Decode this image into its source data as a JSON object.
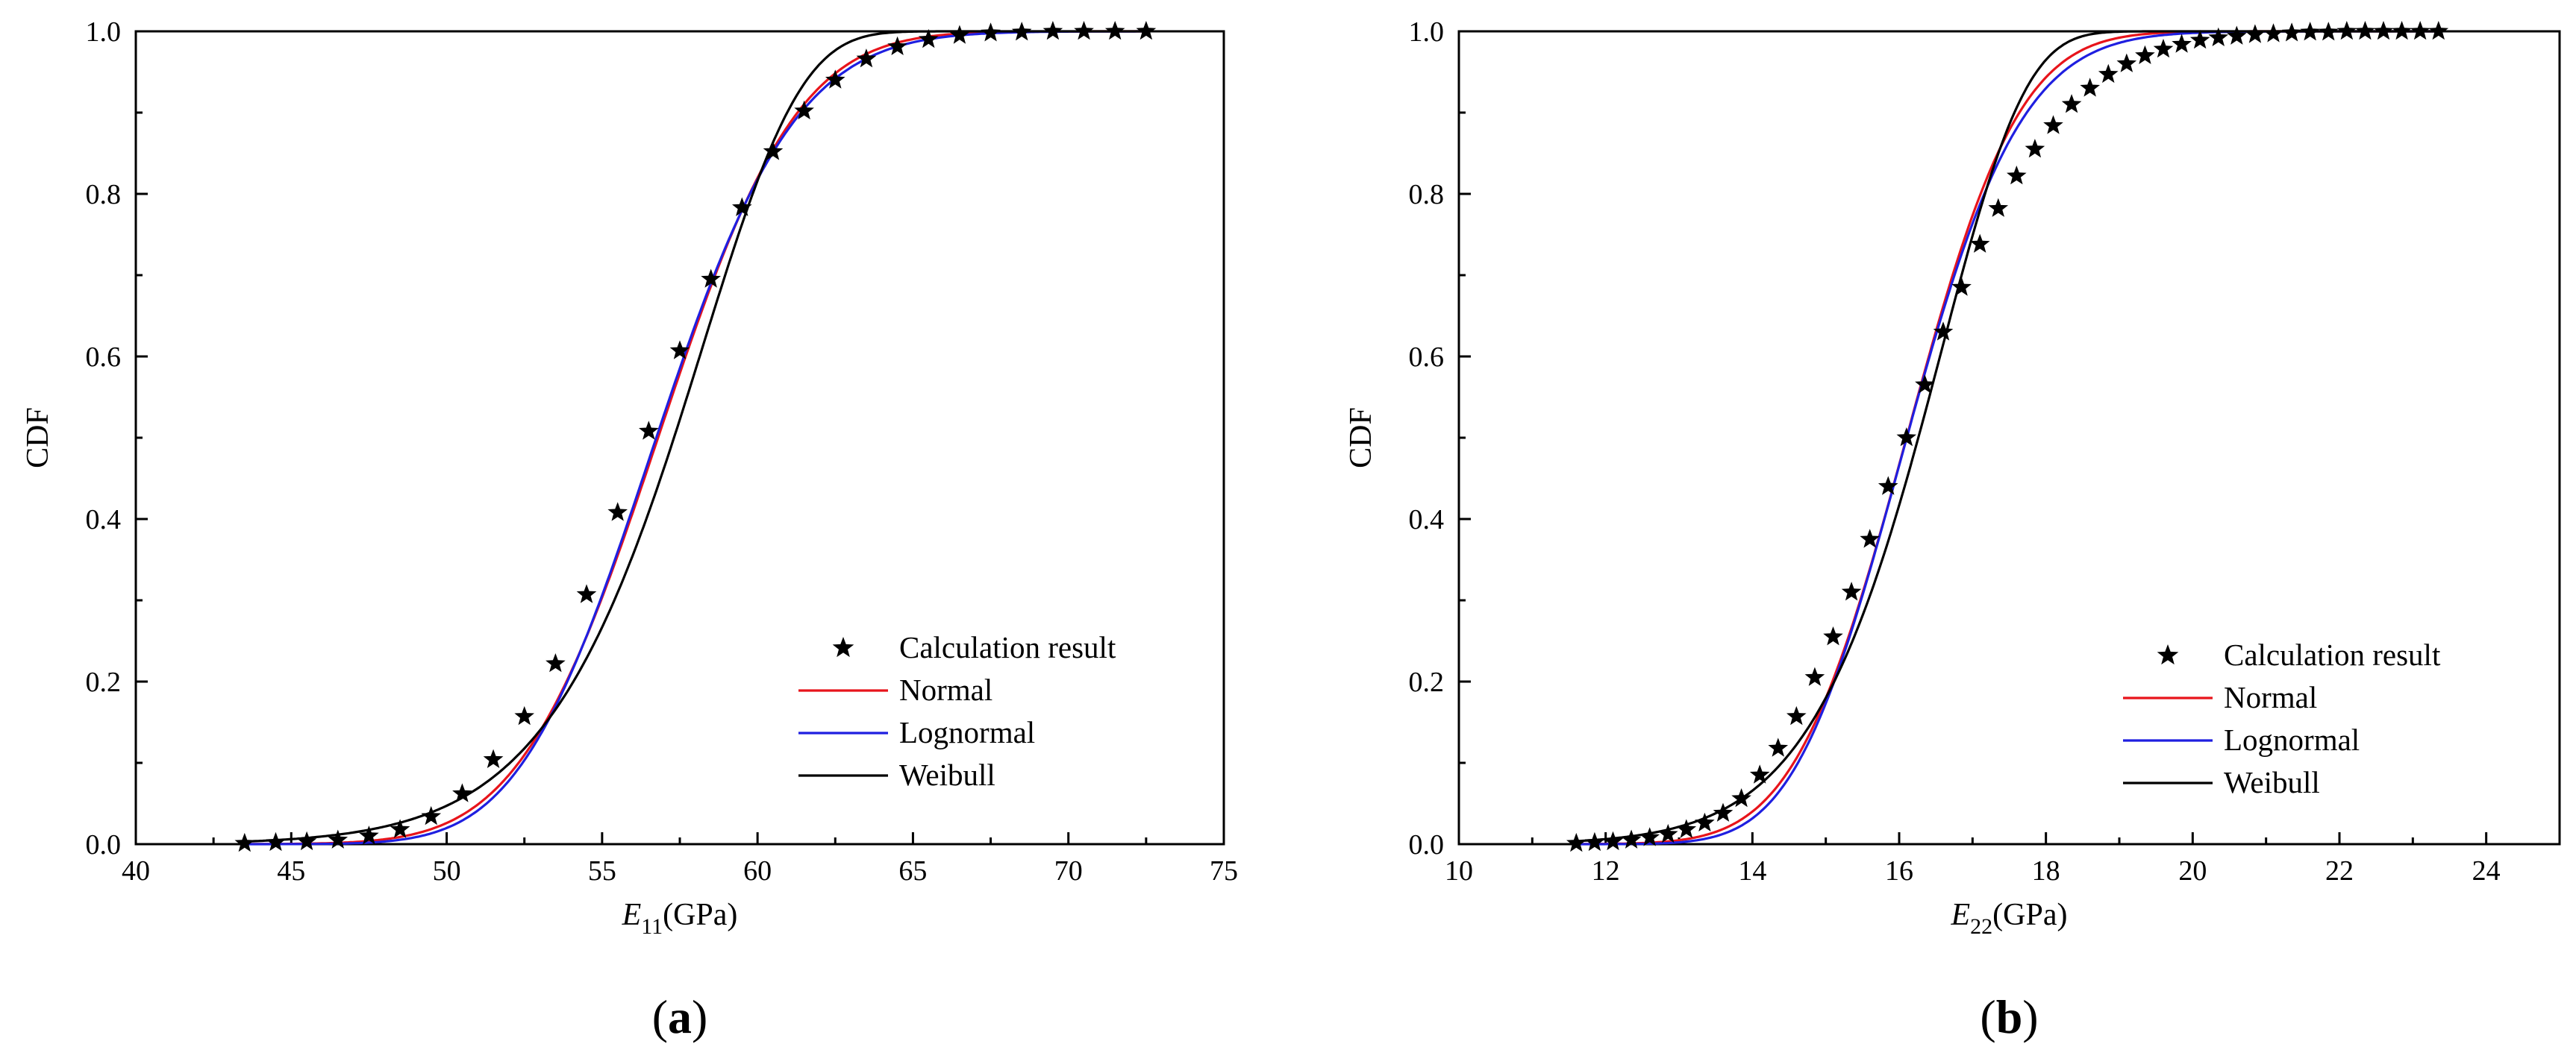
{
  "chart_data": [
    {
      "type": "line",
      "panel_label": "(a)",
      "panel_letter": "a",
      "xlabel_main": "E",
      "xlabel_sub": "11",
      "xlabel_unit": "(GPa)",
      "ylabel": "CDF",
      "xlim": [
        40,
        75
      ],
      "ylim": [
        0,
        1
      ],
      "x_ticks": [
        40,
        45,
        50,
        55,
        60,
        65,
        70,
        75
      ],
      "y_ticks": [
        0.0,
        0.2,
        0.4,
        0.6,
        0.8,
        1.0
      ],
      "grid": false,
      "legend_position": "bottom-right",
      "distributions": {
        "normal": {
          "mean": 56.8,
          "std": 3.5
        },
        "lognormal": {
          "mean": 56.85,
          "std": 3.5
        },
        "weibull": {
          "shape": 19.5,
          "scale": 58.4
        }
      },
      "series": [
        {
          "name": "Calculation result",
          "marker": "star",
          "color": "#000000",
          "x": [
            43.5,
            44.5,
            45.5,
            46.5,
            47.5,
            48.5,
            49.5,
            50.5,
            51.5,
            52.5,
            53.5,
            54.5,
            55.5,
            56.5,
            57.5,
            58.5,
            59.5,
            60.5,
            61.5,
            62.5,
            63.5,
            64.5,
            65.5,
            66.5,
            67.5,
            68.5,
            69.5,
            70.5,
            71.5,
            72.5
          ],
          "y": [
            0.001,
            0.002,
            0.003,
            0.005,
            0.01,
            0.018,
            0.034,
            0.062,
            0.104,
            0.157,
            0.222,
            0.307,
            0.408,
            0.508,
            0.607,
            0.695,
            0.783,
            0.852,
            0.902,
            0.94,
            0.966,
            0.981,
            0.99,
            0.995,
            0.998,
            0.999,
            1.0,
            1.0,
            1.0,
            1.0
          ]
        },
        {
          "name": "Normal",
          "color": "#e8141b"
        },
        {
          "name": "Lognormal",
          "color": "#1f1fe0"
        },
        {
          "name": "Weibull",
          "color": "#000000"
        }
      ]
    },
    {
      "type": "line",
      "panel_label": "(b)",
      "panel_letter": "b",
      "xlabel_main": "E",
      "xlabel_sub": "22",
      "xlabel_unit": "(GPa)",
      "ylabel": "CDF",
      "xlim": [
        10,
        25
      ],
      "ylim": [
        0,
        1
      ],
      "x_ticks": [
        10,
        12,
        14,
        16,
        18,
        20,
        22,
        24
      ],
      "y_ticks": [
        0.0,
        0.2,
        0.4,
        0.6,
        0.8,
        1.0
      ],
      "grid": false,
      "legend_position": "bottom-right",
      "distributions": {
        "normal": {
          "mean": 16.1,
          "std": 1.2
        },
        "lognormal": {
          "mean": 16.15,
          "std": 1.22
        },
        "weibull": {
          "shape": 15.5,
          "scale": 16.65
        }
      },
      "series": [
        {
          "name": "Calculation result",
          "marker": "star",
          "color": "#000000",
          "x": [
            11.6,
            11.85,
            12.1,
            12.35,
            12.6,
            12.85,
            13.1,
            13.35,
            13.6,
            13.85,
            14.1,
            14.35,
            14.6,
            14.85,
            15.1,
            15.35,
            15.6,
            15.85,
            16.1,
            16.35,
            16.6,
            16.85,
            17.1,
            17.35,
            17.6,
            17.85,
            18.1,
            18.35,
            18.6,
            18.85,
            19.1,
            19.35,
            19.6,
            19.85,
            20.1,
            20.35,
            20.6,
            20.85,
            21.1,
            21.35,
            21.6,
            21.85,
            22.1,
            22.35,
            22.6,
            22.85,
            23.1,
            23.35
          ],
          "y": [
            0.001,
            0.002,
            0.003,
            0.005,
            0.008,
            0.012,
            0.018,
            0.026,
            0.038,
            0.056,
            0.085,
            0.118,
            0.157,
            0.205,
            0.255,
            0.31,
            0.375,
            0.44,
            0.5,
            0.565,
            0.63,
            0.685,
            0.738,
            0.782,
            0.822,
            0.855,
            0.884,
            0.91,
            0.93,
            0.947,
            0.96,
            0.97,
            0.978,
            0.984,
            0.989,
            0.992,
            0.994,
            0.996,
            0.997,
            0.998,
            0.999,
            0.999,
            1.0,
            1.0,
            1.0,
            1.0,
            1.0,
            1.0
          ]
        },
        {
          "name": "Normal",
          "color": "#e8141b"
        },
        {
          "name": "Lognormal",
          "color": "#1f1fe0"
        },
        {
          "name": "Weibull",
          "color": "#000000"
        }
      ]
    }
  ]
}
